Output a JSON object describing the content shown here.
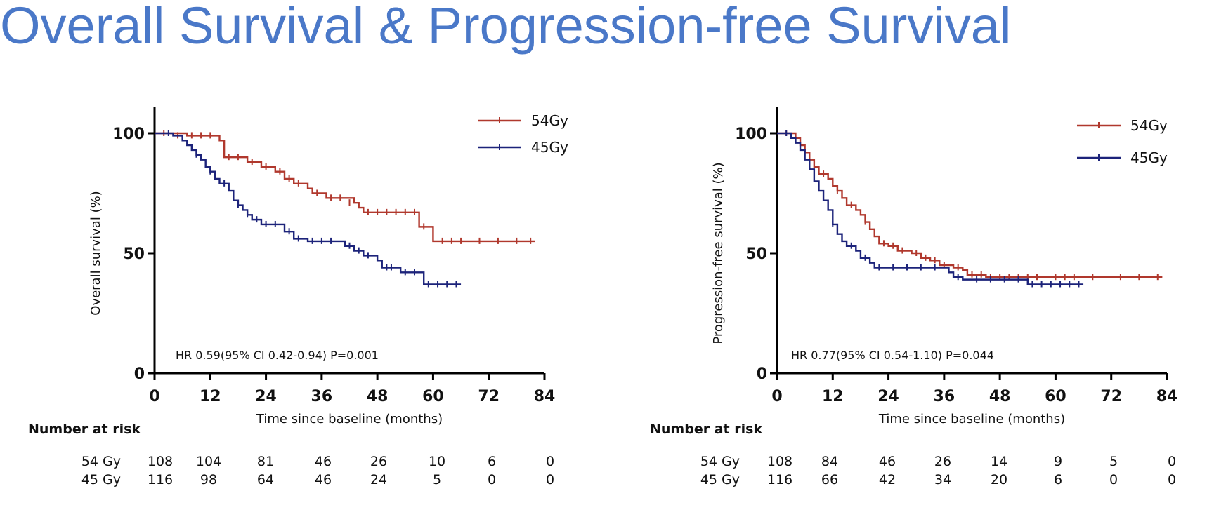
{
  "title": "Overall Survival & Progression-free Survival",
  "colors": {
    "series_54": "#b0382d",
    "series_45": "#1c237a",
    "title": "#4a78c8"
  },
  "chart_data": [
    {
      "type": "line",
      "subtype": "kaplan-meier",
      "ylabel": "Overall survival (%)",
      "xlabel": "Time since baseline (months)",
      "xlim": [
        0,
        84
      ],
      "ylim": [
        0,
        100
      ],
      "x_ticks": [
        "0",
        "12",
        "24",
        "36",
        "48",
        "60",
        "72",
        "84"
      ],
      "y_ticks": [
        "0",
        "50",
        "100"
      ],
      "legend": [
        "54Gy",
        "45Gy"
      ],
      "annotation": "HR 0.59(95% CI 0.42-0.94) P=0.001",
      "series": [
        {
          "name": "54Gy",
          "points": [
            [
              0,
              100
            ],
            [
              7,
              99
            ],
            [
              14,
              97
            ],
            [
              15,
              90
            ],
            [
              20,
              88
            ],
            [
              23,
              86
            ],
            [
              26,
              84
            ],
            [
              28,
              81
            ],
            [
              30,
              79
            ],
            [
              33,
              77
            ],
            [
              34,
              75
            ],
            [
              37,
              73
            ],
            [
              41,
              73
            ],
            [
              43,
              71
            ],
            [
              44,
              69
            ],
            [
              45,
              67
            ],
            [
              57,
              67
            ],
            [
              57,
              61
            ],
            [
              60,
              61
            ],
            [
              60,
              55
            ],
            [
              82,
              55
            ]
          ],
          "censors": [
            [
              2,
              100
            ],
            [
              5,
              99
            ],
            [
              8,
              99
            ],
            [
              10,
              99
            ],
            [
              12,
              99
            ],
            [
              16,
              90
            ],
            [
              18,
              90
            ],
            [
              21,
              88
            ],
            [
              24,
              86
            ],
            [
              27,
              84
            ],
            [
              29,
              81
            ],
            [
              31,
              79
            ],
            [
              35,
              75
            ],
            [
              38,
              73
            ],
            [
              40,
              73
            ],
            [
              42,
              71
            ],
            [
              46,
              67
            ],
            [
              48,
              67
            ],
            [
              50,
              67
            ],
            [
              52,
              67
            ],
            [
              54,
              67
            ],
            [
              56,
              67
            ],
            [
              58,
              61
            ],
            [
              62,
              55
            ],
            [
              64,
              55
            ],
            [
              66,
              55
            ],
            [
              70,
              55
            ],
            [
              74,
              55
            ],
            [
              78,
              55
            ],
            [
              81,
              55
            ]
          ]
        },
        {
          "name": "45Gy",
          "points": [
            [
              0,
              100
            ],
            [
              4,
              99
            ],
            [
              6,
              97
            ],
            [
              7,
              95
            ],
            [
              8,
              93
            ],
            [
              9,
              91
            ],
            [
              10,
              89
            ],
            [
              11,
              86
            ],
            [
              12,
              84
            ],
            [
              13,
              81
            ],
            [
              14,
              79
            ],
            [
              16,
              76
            ],
            [
              17,
              72
            ],
            [
              18,
              70
            ],
            [
              19,
              68
            ],
            [
              20,
              66
            ],
            [
              21,
              64
            ],
            [
              23,
              62
            ],
            [
              27,
              62
            ],
            [
              28,
              59
            ],
            [
              30,
              56
            ],
            [
              33,
              55
            ],
            [
              40,
              55
            ],
            [
              41,
              53
            ],
            [
              43,
              51
            ],
            [
              45,
              49
            ],
            [
              47,
              49
            ],
            [
              48,
              47
            ],
            [
              49,
              44
            ],
            [
              52,
              44
            ],
            [
              53,
              42
            ],
            [
              58,
              42
            ],
            [
              58,
              37
            ],
            [
              66,
              37
            ]
          ],
          "censors": [
            [
              3,
              100
            ],
            [
              9,
              91
            ],
            [
              12,
              84
            ],
            [
              15,
              79
            ],
            [
              18,
              70
            ],
            [
              20,
              66
            ],
            [
              22,
              64
            ],
            [
              24,
              62
            ],
            [
              26,
              62
            ],
            [
              29,
              59
            ],
            [
              31,
              56
            ],
            [
              34,
              55
            ],
            [
              36,
              55
            ],
            [
              38,
              55
            ],
            [
              42,
              53
            ],
            [
              44,
              51
            ],
            [
              46,
              49
            ],
            [
              50,
              44
            ],
            [
              51,
              44
            ],
            [
              54,
              42
            ],
            [
              56,
              42
            ],
            [
              59,
              37
            ],
            [
              61,
              37
            ],
            [
              63,
              37
            ],
            [
              65,
              37
            ]
          ]
        }
      ],
      "risk_table": {
        "header": "Number at risk",
        "rows": [
          {
            "label": "54 Gy",
            "values": [
              "108",
              "104",
              "81",
              "46",
              "26",
              "10",
              "6",
              "0"
            ]
          },
          {
            "label": "45 Gy",
            "values": [
              "116",
              "98",
              "64",
              "46",
              "24",
              "5",
              "0",
              "0"
            ]
          }
        ]
      }
    },
    {
      "type": "line",
      "subtype": "kaplan-meier",
      "ylabel": "Progression-free survival (%)",
      "xlabel": "Time since baseline (months)",
      "xlim": [
        0,
        84
      ],
      "ylim": [
        0,
        100
      ],
      "x_ticks": [
        "0",
        "12",
        "24",
        "36",
        "48",
        "60",
        "72",
        "84"
      ],
      "y_ticks": [
        "0",
        "50",
        "100"
      ],
      "legend": [
        "54Gy",
        "45Gy"
      ],
      "annotation": "HR 0.77(95% CI 0.54-1.10) P=0.044",
      "series": [
        {
          "name": "54Gy",
          "points": [
            [
              0,
              100
            ],
            [
              4,
              98
            ],
            [
              5,
              95
            ],
            [
              6,
              92
            ],
            [
              7,
              89
            ],
            [
              8,
              86
            ],
            [
              9,
              83
            ],
            [
              11,
              81
            ],
            [
              12,
              78
            ],
            [
              13,
              76
            ],
            [
              14,
              73
            ],
            [
              15,
              70
            ],
            [
              17,
              68
            ],
            [
              18,
              66
            ],
            [
              19,
              63
            ],
            [
              20,
              60
            ],
            [
              21,
              57
            ],
            [
              22,
              54
            ],
            [
              24,
              53
            ],
            [
              26,
              51
            ],
            [
              29,
              50
            ],
            [
              31,
              48
            ],
            [
              33,
              47
            ],
            [
              35,
              45
            ],
            [
              38,
              44
            ],
            [
              40,
              43
            ],
            [
              41,
              41
            ],
            [
              45,
              40
            ],
            [
              83,
              40
            ]
          ],
          "censors": [
            [
              2,
              100
            ],
            [
              6,
              92
            ],
            [
              10,
              83
            ],
            [
              13,
              76
            ],
            [
              16,
              70
            ],
            [
              19,
              63
            ],
            [
              23,
              54
            ],
            [
              25,
              53
            ],
            [
              27,
              51
            ],
            [
              30,
              50
            ],
            [
              32,
              48
            ],
            [
              34,
              47
            ],
            [
              36,
              45
            ],
            [
              39,
              44
            ],
            [
              42,
              41
            ],
            [
              44,
              41
            ],
            [
              46,
              40
            ],
            [
              48,
              40
            ],
            [
              50,
              40
            ],
            [
              52,
              40
            ],
            [
              54,
              40
            ],
            [
              56,
              40
            ],
            [
              60,
              40
            ],
            [
              62,
              40
            ],
            [
              64,
              40
            ],
            [
              68,
              40
            ],
            [
              74,
              40
            ],
            [
              78,
              40
            ],
            [
              82,
              40
            ]
          ]
        },
        {
          "name": "45Gy",
          "points": [
            [
              0,
              100
            ],
            [
              3,
              98
            ],
            [
              4,
              96
            ],
            [
              5,
              93
            ],
            [
              6,
              89
            ],
            [
              7,
              85
            ],
            [
              8,
              80
            ],
            [
              9,
              76
            ],
            [
              10,
              72
            ],
            [
              11,
              68
            ],
            [
              12,
              62
            ],
            [
              13,
              58
            ],
            [
              14,
              55
            ],
            [
              15,
              53
            ],
            [
              17,
              51
            ],
            [
              18,
              48
            ],
            [
              20,
              46
            ],
            [
              21,
              44
            ],
            [
              35,
              44
            ],
            [
              37,
              42
            ],
            [
              38,
              40
            ],
            [
              40,
              39
            ],
            [
              53,
              39
            ],
            [
              54,
              37
            ],
            [
              66,
              37
            ]
          ],
          "censors": [
            [
              2,
              100
            ],
            [
              12,
              62
            ],
            [
              16,
              53
            ],
            [
              19,
              48
            ],
            [
              22,
              44
            ],
            [
              25,
              44
            ],
            [
              28,
              44
            ],
            [
              31,
              44
            ],
            [
              34,
              44
            ],
            [
              39,
              40
            ],
            [
              43,
              39
            ],
            [
              46,
              39
            ],
            [
              49,
              39
            ],
            [
              52,
              39
            ],
            [
              55,
              37
            ],
            [
              57,
              37
            ],
            [
              59,
              37
            ],
            [
              61,
              37
            ],
            [
              63,
              37
            ],
            [
              65,
              37
            ]
          ]
        }
      ],
      "risk_table": {
        "header": "Number at risk",
        "rows": [
          {
            "label": "54 Gy",
            "values": [
              "108",
              "84",
              "46",
              "26",
              "14",
              "9",
              "5",
              "0"
            ]
          },
          {
            "label": "45 Gy",
            "values": [
              "116",
              "66",
              "42",
              "34",
              "20",
              "6",
              "0",
              "0"
            ]
          }
        ]
      }
    }
  ]
}
